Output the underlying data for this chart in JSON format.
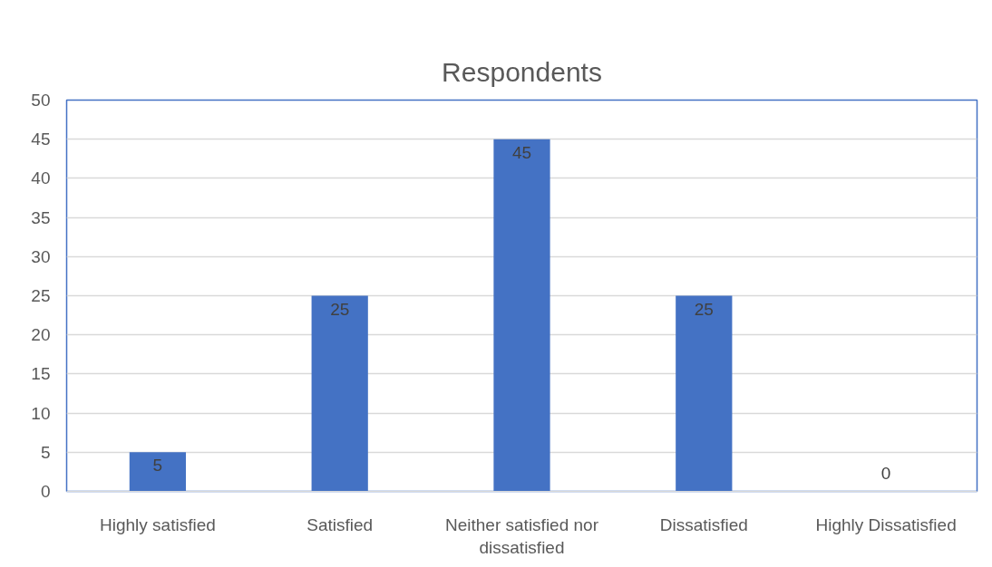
{
  "chart_data": {
    "type": "bar",
    "title": "Respondents",
    "categories": [
      "Highly satisfied",
      "Satisfied",
      "Neither satisfied nor dissatisfied",
      "Dissatisfied",
      "Highly Dissatisfied"
    ],
    "values": [
      5,
      25,
      45,
      25,
      0
    ],
    "color": "#4472c4",
    "ylim": [
      0,
      50
    ],
    "yticks": [
      0,
      5,
      10,
      15,
      20,
      25,
      30,
      35,
      40,
      45,
      50
    ],
    "grid": "y",
    "data_labels": true
  }
}
